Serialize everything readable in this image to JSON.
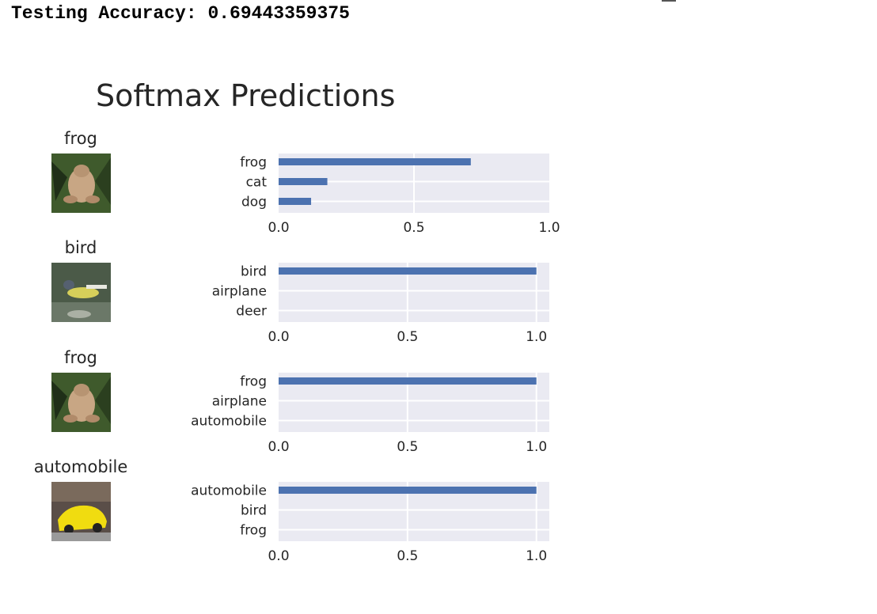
{
  "header": {
    "accuracy_label": "Testing Accuracy:",
    "accuracy_value": "0.69443359375"
  },
  "title": "Softmax Predictions",
  "colors": {
    "bar": "#4c72b0",
    "axes_bg": "#eaeaf2",
    "grid": "#ffffff"
  },
  "chart_data": [
    {
      "type": "bar",
      "orientation": "horizontal",
      "image_label": "frog",
      "image_icon": "frog-photo-icon",
      "categories": [
        "frog",
        "cat",
        "dog"
      ],
      "values": [
        0.71,
        0.18,
        0.12
      ],
      "xticks": [
        "0.0",
        "0.5",
        "1.0"
      ],
      "xlim": [
        0,
        1.0
      ],
      "grid": true
    },
    {
      "type": "bar",
      "orientation": "horizontal",
      "image_label": "bird",
      "image_icon": "bird-photo-icon",
      "categories": [
        "bird",
        "airplane",
        "deer"
      ],
      "values": [
        1.0,
        0.0,
        0.0
      ],
      "xticks": [
        "0.0",
        "0.5",
        "1.0"
      ],
      "xlim": [
        0,
        1.05
      ],
      "grid": true
    },
    {
      "type": "bar",
      "orientation": "horizontal",
      "image_label": "frog",
      "image_icon": "frog-photo-icon",
      "categories": [
        "frog",
        "airplane",
        "automobile"
      ],
      "values": [
        1.0,
        0.0,
        0.0
      ],
      "xticks": [
        "0.0",
        "0.5",
        "1.0"
      ],
      "xlim": [
        0,
        1.05
      ],
      "grid": true
    },
    {
      "type": "bar",
      "orientation": "horizontal",
      "image_label": "automobile",
      "image_icon": "car-photo-icon",
      "categories": [
        "automobile",
        "bird",
        "frog"
      ],
      "values": [
        1.0,
        0.0,
        0.0
      ],
      "xticks": [
        "0.0",
        "0.5",
        "1.0"
      ],
      "xlim": [
        0,
        1.05
      ],
      "grid": true
    }
  ]
}
